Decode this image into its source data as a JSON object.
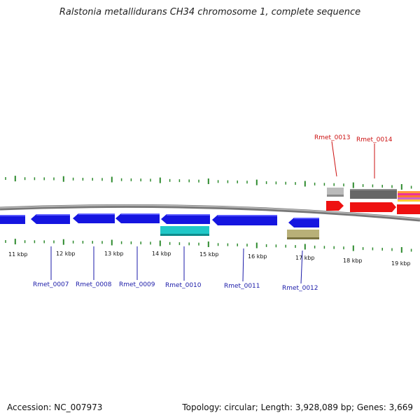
{
  "title": "Ralstonia metallidurans CH34 chromosome 1, complete sequence",
  "footer": {
    "accession": "Accession: NC_007973",
    "summary": "Topology: circular; Length: 3,928,089 bp; Genes: 3,669"
  },
  "colors": {
    "backbone": "#888888",
    "tick": "#2e8b2e",
    "gene_blue": "#1515e0",
    "gene_cyan": "#20c8c8",
    "gene_olive": "#b8b078",
    "gene_red": "#ee1111",
    "gene_gray": "#bbbbbb",
    "gene_dark": "#666666",
    "label_blue": "#1a1aa8",
    "label_red": "#cc1111"
  },
  "scale_labels": [
    "11 kbp",
    "12 kbp",
    "13 kbp",
    "14 kbp",
    "15 kbp",
    "16 kbp",
    "17 kbp",
    "18 kbp",
    "19 kbp"
  ],
  "gene_labels": {
    "bottom": [
      "Rmet_0007",
      "Rmet_0008",
      "Rmet_0009",
      "Rmet_0010",
      "Rmet_0011",
      "Rmet_0012"
    ],
    "top": [
      "Rmet_0013",
      "Rmet_0014"
    ]
  }
}
